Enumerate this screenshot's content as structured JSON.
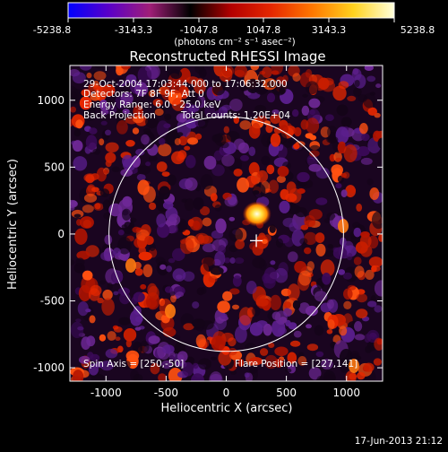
{
  "colorbar": {
    "ticks": [
      "-5238.8",
      "-3143.3",
      "-1047.8",
      "1047.8",
      "3143.3",
      "5238.8"
    ],
    "unit_label": "(photons cm⁻² s⁻¹ asec⁻²)",
    "colors": [
      "#0000ff",
      "#5a00c8",
      "#a01e78",
      "#000000",
      "#b40000",
      "#e62800",
      "#ff7800",
      "#ffd21e",
      "#ffffdc"
    ]
  },
  "chart_data": {
    "type": "heatmap",
    "title": "Reconstructed RHESSI Image",
    "xlabel": "Heliocentric X (arcsec)",
    "ylabel": "Heliocentric Y (arcsec)",
    "xlim": [
      -1300,
      1300
    ],
    "ylim": [
      -1100,
      1260
    ],
    "x_ticks": [
      "-1000",
      "-500",
      "0",
      "500",
      "1000"
    ],
    "y_ticks": [
      "1000",
      "500",
      "0",
      "-500",
      "-1000"
    ],
    "x_tick_values": [
      -1000,
      -500,
      0,
      500,
      1000
    ],
    "y_tick_values": [
      1000,
      500,
      0,
      -500,
      -1000
    ],
    "solar_limb_radius": 975,
    "flare_position": [
      227,
      141
    ],
    "spin_axis": [
      250,
      -50
    ],
    "peak_source": [
      255,
      150
    ],
    "annotations": {
      "time": "29-Oct-2004 17:03:44.000 to 17:06:32.000",
      "detectors": "Detectors: 7F 8F 9F, Att 0",
      "energy": "Energy Range: 6.0 - 25.0 keV",
      "method": "Back Projection",
      "counts": "Total counts: 1.20E+04",
      "spin_axis_label": "Spin Axis = [250,-50]",
      "flare_label": "Flare Position = [227,141]"
    }
  },
  "footer": {
    "date": "17-Jun-2013 21:12"
  }
}
